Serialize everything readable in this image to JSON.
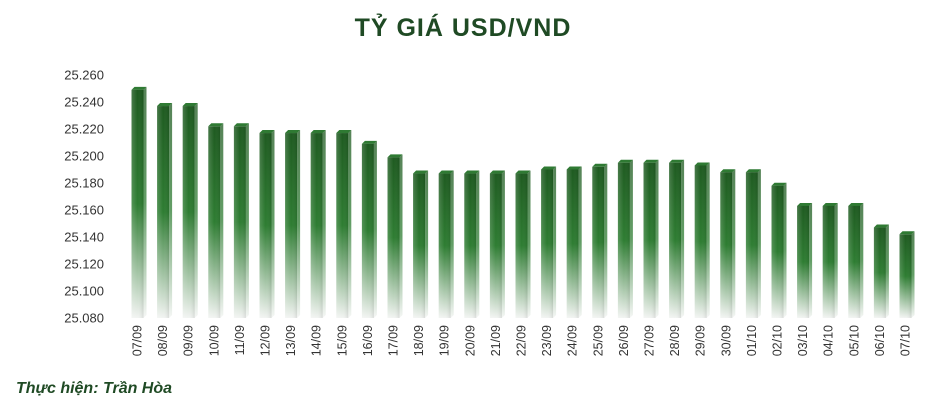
{
  "chart_data": {
    "type": "bar",
    "title": "TỶ GIÁ USD/VND",
    "categories": [
      "07/09",
      "08/09",
      "09/09",
      "10/09",
      "11/09",
      "12/09",
      "13/09",
      "14/09",
      "15/09",
      "16/09",
      "17/09",
      "18/09",
      "19/09",
      "20/09",
      "21/09",
      "22/09",
      "23/09",
      "24/09",
      "25/09",
      "26/09",
      "27/09",
      "28/09",
      "29/09",
      "30/09",
      "01/10",
      "02/10",
      "03/10",
      "04/10",
      "05/10",
      "06/10",
      "07/10"
    ],
    "values": [
      25249,
      25237,
      25237,
      25222,
      25222,
      25217,
      25217,
      25217,
      25217,
      25209,
      25199,
      25187,
      25187,
      25187,
      25187,
      25187,
      25190,
      25190,
      25192,
      25195,
      25195,
      25195,
      25193,
      25188,
      25188,
      25178,
      25163,
      25163,
      25163,
      25147,
      25142
    ],
    "yticks": [
      "25.260",
      "25.240",
      "25.220",
      "25.200",
      "25.180",
      "25.160",
      "25.140",
      "25.120",
      "25.100",
      "25.080"
    ],
    "ylim": [
      25080,
      25260
    ],
    "xlabel": "",
    "ylabel": "",
    "grid": false,
    "colors": {
      "bar_top": "#1e5a20",
      "bar_mid": "#2e7d32",
      "bar_fade": "#f2f4f2",
      "title": "#1f4a24"
    }
  },
  "credit": "Thực hiện: Trần Hòa"
}
